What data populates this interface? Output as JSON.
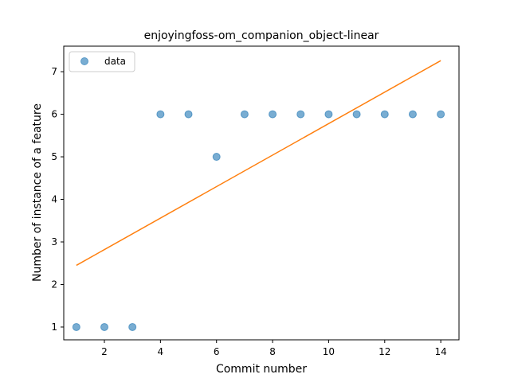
{
  "chart_data": {
    "type": "scatter",
    "title": "enjoyingfoss-om_companion_object-linear",
    "xlabel": "Commit number",
    "ylabel": "Number of instance of a feature",
    "xlim": [
      0.55,
      14.65
    ],
    "ylim": [
      0.7,
      7.6
    ],
    "xticks": [
      2,
      4,
      6,
      8,
      10,
      12,
      14
    ],
    "yticks": [
      1,
      2,
      3,
      4,
      5,
      6,
      7
    ],
    "grid": false,
    "legend_position": "top-left",
    "series": [
      {
        "name": "data",
        "kind": "scatter",
        "color": "#1f77b4",
        "x": [
          1,
          2,
          3,
          4,
          5,
          6,
          7,
          8,
          9,
          10,
          11,
          12,
          13,
          14
        ],
        "y": [
          1,
          1,
          1,
          6,
          6,
          5,
          6,
          6,
          6,
          6,
          6,
          6,
          6,
          6
        ]
      },
      {
        "kind": "line",
        "color": "#ff7f0e",
        "x": [
          1,
          14
        ],
        "y": [
          2.45,
          7.26
        ]
      }
    ]
  }
}
